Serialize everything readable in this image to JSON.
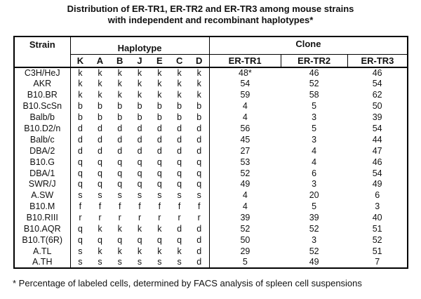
{
  "title": {
    "line1": "Distribution of ER-TR1, ER-TR2 and ER-TR3 among mouse strains",
    "line2": "with independent and recombinant haplotypes*"
  },
  "table": {
    "header": {
      "strain": "Strain",
      "haplotype": "Haplotype",
      "clone": "Clone",
      "haplotype_cols": [
        "K",
        "A",
        "B",
        "J",
        "E",
        "C",
        "D"
      ],
      "clone_cols": [
        "ER-TR1",
        "ER-TR2",
        "ER-TR3"
      ]
    },
    "rows": [
      {
        "strain": "C3H/HeJ",
        "haplotype": [
          "k",
          "k",
          "k",
          "k",
          "k",
          "k",
          "k"
        ],
        "clones": [
          "48*",
          "46",
          "46"
        ]
      },
      {
        "strain": "AKR",
        "haplotype": [
          "k",
          "k",
          "k",
          "k",
          "k",
          "k",
          "k"
        ],
        "clones": [
          "54",
          "52",
          "54"
        ]
      },
      {
        "strain": "B10.BR",
        "haplotype": [
          "k",
          "k",
          "k",
          "k",
          "k",
          "k",
          "k"
        ],
        "clones": [
          "59",
          "58",
          "62"
        ]
      },
      {
        "strain": "B10.ScSn",
        "haplotype": [
          "b",
          "b",
          "b",
          "b",
          "b",
          "b",
          "b"
        ],
        "clones": [
          "4",
          "5",
          "50"
        ]
      },
      {
        "strain": "Balb/b",
        "haplotype": [
          "b",
          "b",
          "b",
          "b",
          "b",
          "b",
          "b"
        ],
        "clones": [
          "4",
          "3",
          "39"
        ]
      },
      {
        "strain": "B10.D2/n",
        "haplotype": [
          "d",
          "d",
          "d",
          "d",
          "d",
          "d",
          "d"
        ],
        "clones": [
          "56",
          "5",
          "54"
        ]
      },
      {
        "strain": "Balb/c",
        "haplotype": [
          "d",
          "d",
          "d",
          "d",
          "d",
          "d",
          "d"
        ],
        "clones": [
          "45",
          "3",
          "44"
        ]
      },
      {
        "strain": "DBA/2",
        "haplotype": [
          "d",
          "d",
          "d",
          "d",
          "d",
          "d",
          "d"
        ],
        "clones": [
          "27",
          "4",
          "47"
        ]
      },
      {
        "strain": "B10.G",
        "haplotype": [
          "q",
          "q",
          "q",
          "q",
          "q",
          "q",
          "q"
        ],
        "clones": [
          "53",
          "4",
          "46"
        ]
      },
      {
        "strain": "DBA/1",
        "haplotype": [
          "q",
          "q",
          "q",
          "q",
          "q",
          "q",
          "q"
        ],
        "clones": [
          "52",
          "6",
          "54"
        ]
      },
      {
        "strain": "SWR/J",
        "haplotype": [
          "q",
          "q",
          "q",
          "q",
          "q",
          "q",
          "q"
        ],
        "clones": [
          "49",
          "3",
          "49"
        ]
      },
      {
        "strain": "A.SW",
        "haplotype": [
          "s",
          "s",
          "s",
          "s",
          "s",
          "s",
          "s"
        ],
        "clones": [
          "4",
          "20",
          "6"
        ]
      },
      {
        "strain": "B10.M",
        "haplotype": [
          "f",
          "f",
          "f",
          "f",
          "f",
          "f",
          "f"
        ],
        "clones": [
          "4",
          "5",
          "3"
        ]
      },
      {
        "strain": "B10.RIII",
        "haplotype": [
          "r",
          "r",
          "r",
          "r",
          "r",
          "r",
          "r"
        ],
        "clones": [
          "39",
          "39",
          "40"
        ]
      },
      {
        "strain": "B10.AQR",
        "haplotype": [
          "q",
          "k",
          "k",
          "k",
          "k",
          "d",
          "d"
        ],
        "clones": [
          "52",
          "52",
          "51"
        ]
      },
      {
        "strain": "B10.T(6R)",
        "haplotype": [
          "q",
          "q",
          "q",
          "q",
          "q",
          "q",
          "d"
        ],
        "clones": [
          "50",
          "3",
          "52"
        ]
      },
      {
        "strain": "A.TL",
        "haplotype": [
          "s",
          "k",
          "k",
          "k",
          "k",
          "k",
          "d"
        ],
        "clones": [
          "29",
          "52",
          "51"
        ]
      },
      {
        "strain": "A.TH",
        "haplotype": [
          "s",
          "s",
          "s",
          "s",
          "s",
          "s",
          "d"
        ],
        "clones": [
          "5",
          "49",
          "7"
        ]
      }
    ]
  },
  "footnote": "* Percentage of labeled cells, determined by FACS analysis of spleen cell suspensions",
  "colors": {
    "text": "#111111",
    "border": "#000000",
    "background": "#ffffff"
  }
}
